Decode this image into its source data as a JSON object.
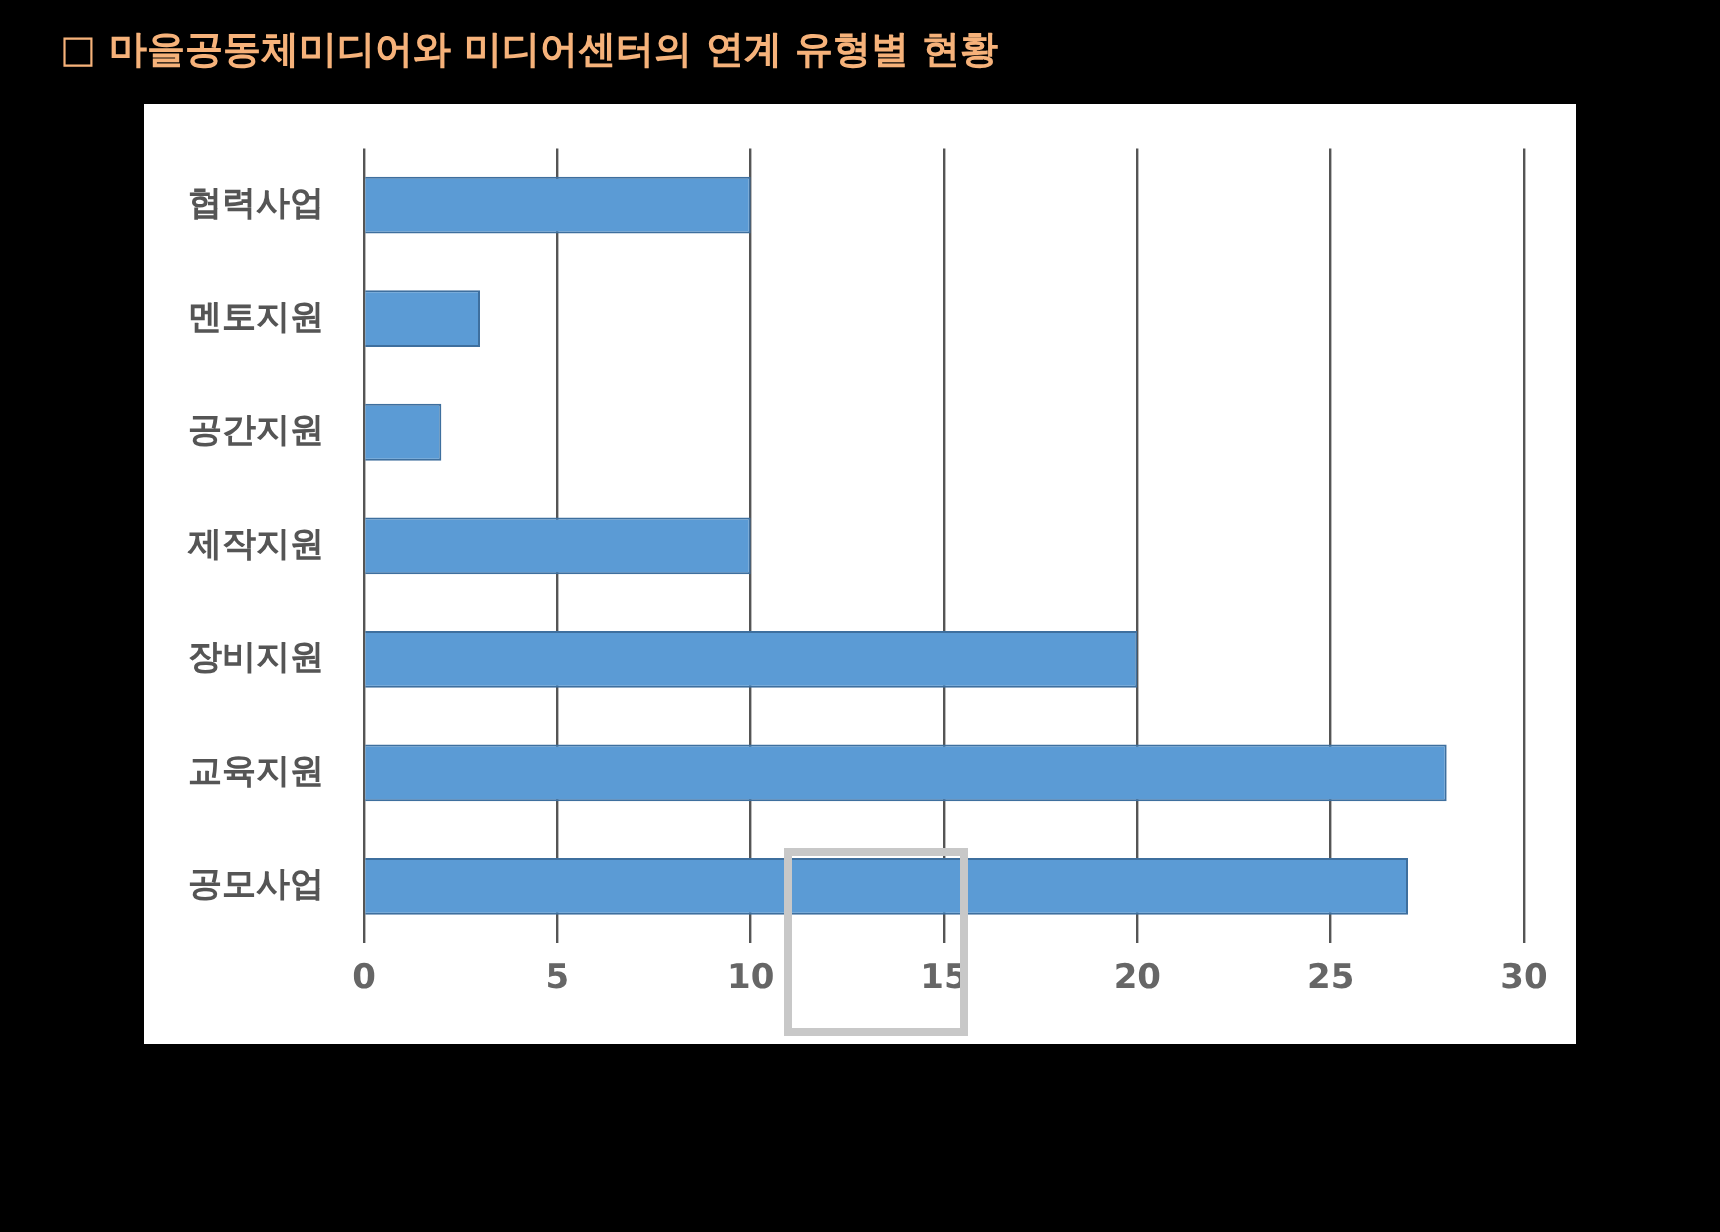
{
  "chart_data": {
    "type": "bar",
    "orientation": "horizontal",
    "title": "□ 마을공동체미디어와 미디어센터의 연계 유형별 현황",
    "categories": [
      "협력사업",
      "멘토지원",
      "공간지원",
      "제작지원",
      "장비지원",
      "교육지원",
      "공모사업"
    ],
    "values": [
      10,
      3,
      2,
      10,
      20,
      28,
      27
    ],
    "color": "#5b9bd5",
    "xlim": [
      0,
      30
    ],
    "xticks": [
      0,
      5,
      10,
      15,
      20,
      25,
      30
    ],
    "grid": "x",
    "legend": false
  }
}
